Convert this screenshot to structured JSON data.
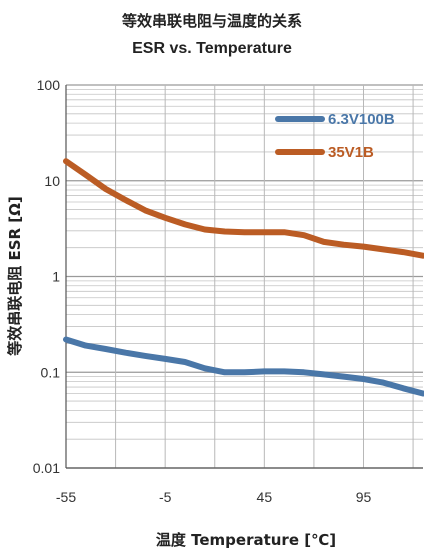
{
  "chart_data": {
    "type": "line",
    "title": "等效串联电阻与温度的关系",
    "subtitle": "ESR vs. Temperature",
    "xlabel": "温度 Temperature [℃]",
    "ylabel": "等效串联电阻 ESR [Ω]",
    "x_ticks": [
      "-55",
      "-5",
      "45",
      "95"
    ],
    "y_ticks": [
      "100",
      "10",
      "1",
      "0.1",
      "0.01"
    ],
    "xlim": [
      -55,
      125
    ],
    "ylim": [
      0.01,
      100
    ],
    "y_scale": "log",
    "grid": true,
    "legend": "top-right",
    "series": [
      {
        "name": "6.3V100B",
        "color": "#4a77a8",
        "x": [
          -55,
          -45,
          -35,
          -25,
          -15,
          -5,
          5,
          15,
          25,
          35,
          45,
          55,
          65,
          75,
          85,
          95,
          105,
          115,
          125
        ],
        "y": [
          0.22,
          0.19,
          0.175,
          0.16,
          0.148,
          0.138,
          0.128,
          0.11,
          0.1,
          0.1,
          0.102,
          0.102,
          0.1,
          0.095,
          0.09,
          0.085,
          0.078,
          0.068,
          0.06
        ]
      },
      {
        "name": "35V1B",
        "color": "#bb5c24",
        "x": [
          -55,
          -45,
          -35,
          -25,
          -15,
          -5,
          5,
          15,
          25,
          35,
          45,
          55,
          65,
          75,
          85,
          95,
          105,
          115,
          125
        ],
        "y": [
          16,
          11.5,
          8.2,
          6.3,
          4.9,
          4.1,
          3.5,
          3.1,
          2.95,
          2.9,
          2.9,
          2.9,
          2.7,
          2.3,
          2.15,
          2.05,
          1.92,
          1.8,
          1.65
        ]
      }
    ]
  }
}
